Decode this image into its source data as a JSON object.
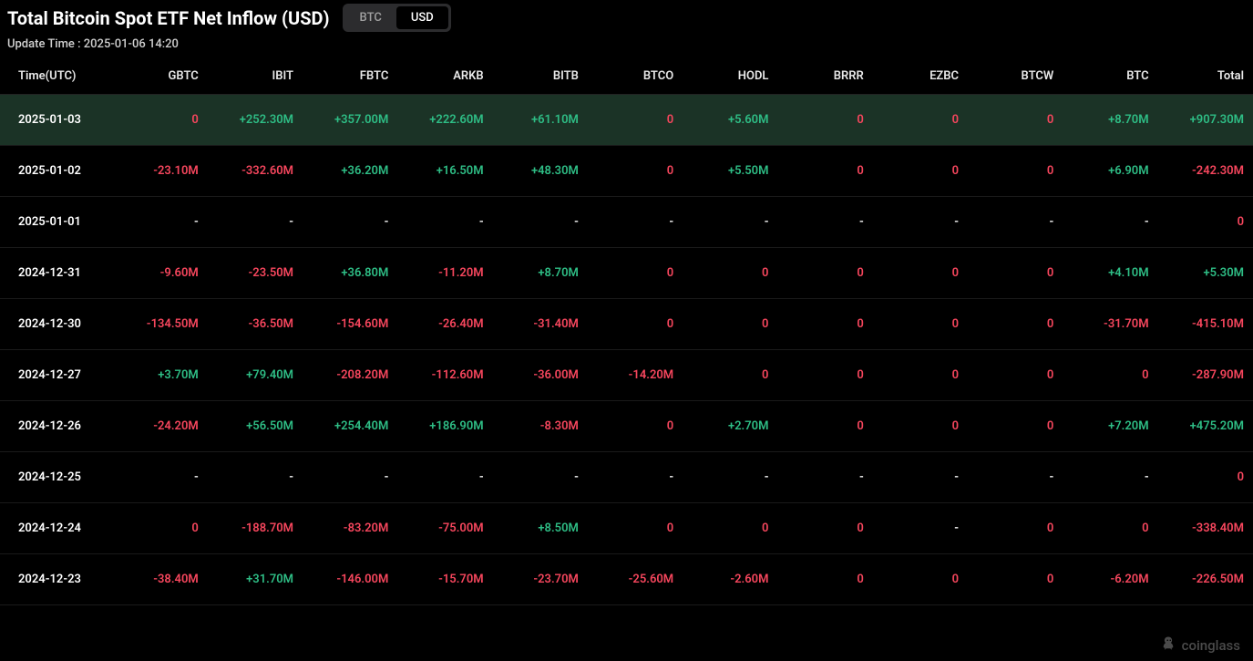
{
  "header": {
    "title": "Total Bitcoin Spot ETF Net Inflow (USD)",
    "toggle": {
      "btc": "BTC",
      "usd": "USD",
      "active": "usd"
    },
    "update_time": "Update Time : 2025-01-06 14:20"
  },
  "colors": {
    "positive": "#2ebd85",
    "negative": "#f6465d",
    "zero": "#f6465d",
    "dash": "#ffffff",
    "background": "#000000",
    "row_highlight": "#1b3326",
    "border": "#1a1a1a"
  },
  "table": {
    "columns": [
      "Time(UTC)",
      "GBTC",
      "IBIT",
      "FBTC",
      "ARKB",
      "BITB",
      "BTCO",
      "HODL",
      "BRRR",
      "EZBC",
      "BTCW",
      "BTC",
      "Total"
    ],
    "col_widths": [
      "9%",
      "7.6%",
      "7.6%",
      "7.6%",
      "7.6%",
      "7.6%",
      "7.6%",
      "7.6%",
      "7.6%",
      "7.6%",
      "7.6%",
      "7.6%",
      "7.6%"
    ],
    "rows": [
      {
        "highlight": true,
        "cells": [
          "2025-01-03",
          "0",
          "+252.30M",
          "+357.00M",
          "+222.60M",
          "+61.10M",
          "0",
          "+5.60M",
          "0",
          "0",
          "0",
          "+8.70M",
          "+907.30M"
        ]
      },
      {
        "highlight": false,
        "cells": [
          "2025-01-02",
          "-23.10M",
          "-332.60M",
          "+36.20M",
          "+16.50M",
          "+48.30M",
          "0",
          "+5.50M",
          "0",
          "0",
          "0",
          "+6.90M",
          "-242.30M"
        ]
      },
      {
        "highlight": false,
        "cells": [
          "2025-01-01",
          "-",
          "-",
          "-",
          "-",
          "-",
          "-",
          "-",
          "-",
          "-",
          "-",
          "-",
          "0"
        ]
      },
      {
        "highlight": false,
        "cells": [
          "2024-12-31",
          "-9.60M",
          "-23.50M",
          "+36.80M",
          "-11.20M",
          "+8.70M",
          "0",
          "0",
          "0",
          "0",
          "0",
          "+4.10M",
          "+5.30M"
        ]
      },
      {
        "highlight": false,
        "cells": [
          "2024-12-30",
          "-134.50M",
          "-36.50M",
          "-154.60M",
          "-26.40M",
          "-31.40M",
          "0",
          "0",
          "0",
          "0",
          "0",
          "-31.70M",
          "-415.10M"
        ]
      },
      {
        "highlight": false,
        "cells": [
          "2024-12-27",
          "+3.70M",
          "+79.40M",
          "-208.20M",
          "-112.60M",
          "-36.00M",
          "-14.20M",
          "0",
          "0",
          "0",
          "0",
          "0",
          "-287.90M"
        ]
      },
      {
        "highlight": false,
        "cells": [
          "2024-12-26",
          "-24.20M",
          "+56.50M",
          "+254.40M",
          "+186.90M",
          "-8.30M",
          "0",
          "+2.70M",
          "0",
          "0",
          "0",
          "+7.20M",
          "+475.20M"
        ]
      },
      {
        "highlight": false,
        "cells": [
          "2024-12-25",
          "-",
          "-",
          "-",
          "-",
          "-",
          "-",
          "-",
          "-",
          "-",
          "-",
          "-",
          "0"
        ]
      },
      {
        "highlight": false,
        "cells": [
          "2024-12-24",
          "0",
          "-188.70M",
          "-83.20M",
          "-75.00M",
          "+8.50M",
          "0",
          "0",
          "0",
          "-",
          "0",
          "0",
          "-338.40M"
        ]
      },
      {
        "highlight": false,
        "cells": [
          "2024-12-23",
          "-38.40M",
          "+31.70M",
          "-146.00M",
          "-15.70M",
          "-23.70M",
          "-25.60M",
          "-2.60M",
          "0",
          "0",
          "0",
          "-6.20M",
          "-226.50M"
        ]
      }
    ]
  },
  "watermark": {
    "text": "coinglass"
  }
}
